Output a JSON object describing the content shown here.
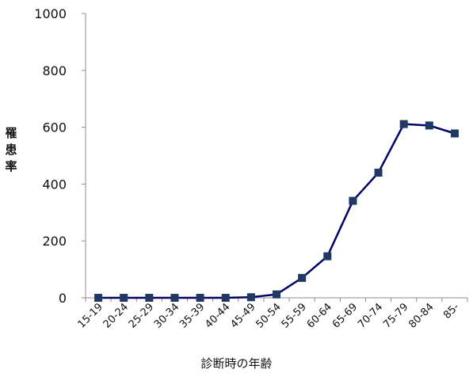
{
  "chart_data": {
    "type": "line",
    "title": "",
    "xlabel": "診断時の年齢",
    "ylabel": "罹患率",
    "categories": [
      "15-19",
      "20-24",
      "25-29",
      "30-34",
      "35-39",
      "40-44",
      "45-49",
      "50-54",
      "55-59",
      "60-64",
      "65-69",
      "70-74",
      "75-79",
      "80-84",
      "85-"
    ],
    "series": [
      {
        "name": "",
        "values": [
          0,
          0,
          0,
          0,
          0,
          0,
          2,
          12,
          70,
          146,
          341,
          440,
          611,
          606,
          578
        ]
      }
    ],
    "ylim": [
      0,
      1000
    ],
    "yticks": [
      0,
      200,
      400,
      600,
      800,
      1000
    ],
    "grid": false,
    "legend": "none",
    "line_color": "#000066",
    "marker_color": "#1F3864",
    "marker": "square"
  }
}
